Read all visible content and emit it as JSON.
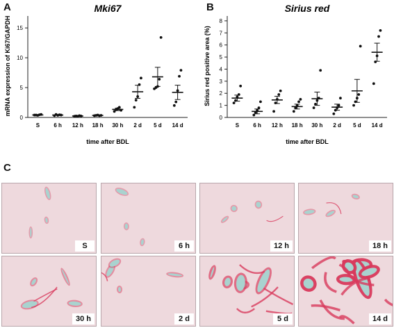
{
  "panels": {
    "a": "A",
    "b": "B",
    "c": "C"
  },
  "chart_data": [
    {
      "type": "scatter",
      "title": "Mki67",
      "xlabel": "time after BDL",
      "ylabel": "mRNA expression of Ki67/GAPDH",
      "categories": [
        "S",
        "6 h",
        "12 h",
        "18 h",
        "30 h",
        "2 d",
        "5 d",
        "14 d"
      ],
      "ylim": [
        0,
        17
      ],
      "yticks": [
        0,
        5,
        10,
        15
      ],
      "points": [
        [
          0.4,
          0.4,
          0.35,
          0.45,
          0.5
        ],
        [
          0.3,
          0.5,
          0.35,
          0.45,
          0.4
        ],
        [
          0.2,
          0.25,
          0.2,
          0.3,
          0.25
        ],
        [
          0.3,
          0.35,
          0.4,
          0.3,
          0.35
        ],
        [
          1.0,
          1.3,
          1.5,
          1.7,
          1.2
        ],
        [
          1.7,
          2.9,
          3.5,
          5.5,
          6.6
        ],
        [
          4.8,
          5.0,
          5.2,
          6.4,
          13.4
        ],
        [
          2.0,
          2.6,
          4.5,
          6.9,
          7.9
        ]
      ],
      "means": [
        0.42,
        0.4,
        0.24,
        0.34,
        1.35,
        4.3,
        6.8,
        4.2
      ],
      "errors": [
        0.05,
        0.05,
        0.03,
        0.05,
        0.2,
        1.1,
        1.6,
        1.2
      ]
    },
    {
      "type": "scatter",
      "title": "Sirius red",
      "xlabel": "time after BDL",
      "ylabel": "Sirius red positive area (%)",
      "categories": [
        "S",
        "6 h",
        "12 h",
        "18 h",
        "30 h",
        "2 d",
        "5 d",
        "14 d"
      ],
      "ylim": [
        0,
        8.4
      ],
      "yticks": [
        0,
        1,
        2,
        3,
        4,
        5,
        6,
        7,
        8
      ],
      "points": [
        [
          1.2,
          1.4,
          1.7,
          1.9,
          2.6
        ],
        [
          0.2,
          0.4,
          0.6,
          0.8,
          1.3
        ],
        [
          0.5,
          1.2,
          1.5,
          1.9,
          2.2
        ],
        [
          0.5,
          0.8,
          1.0,
          1.3,
          1.5
        ],
        [
          0.8,
          1.1,
          1.4,
          1.6,
          3.9
        ],
        [
          0.3,
          0.6,
          0.8,
          1.0,
          1.6
        ],
        [
          1.0,
          1.3,
          1.6,
          1.9,
          5.9
        ],
        [
          2.8,
          4.6,
          5.1,
          6.7,
          7.2
        ]
      ],
      "means": [
        1.6,
        0.5,
        1.45,
        0.9,
        1.55,
        0.85,
        2.2,
        5.4
      ],
      "errors": [
        0.25,
        0.2,
        0.3,
        0.2,
        0.55,
        0.25,
        0.95,
        0.75
      ]
    }
  ],
  "micrographs": {
    "images": [
      {
        "label": "S",
        "fibrosis": 0.05
      },
      {
        "label": "6 h",
        "fibrosis": 0.05
      },
      {
        "label": "12 h",
        "fibrosis": 0.08
      },
      {
        "label": "18 h",
        "fibrosis": 0.08
      },
      {
        "label": "30 h",
        "fibrosis": 0.22
      },
      {
        "label": "2 d",
        "fibrosis": 0.2
      },
      {
        "label": "5 d",
        "fibrosis": 0.55
      },
      {
        "label": "14 d",
        "fibrosis": 1.0
      }
    ],
    "colors": {
      "background": "#f3e6e8",
      "parenchyma": "#eed9dd",
      "collagen": "#d83a5c",
      "lumen": "#a9d3cf"
    }
  }
}
